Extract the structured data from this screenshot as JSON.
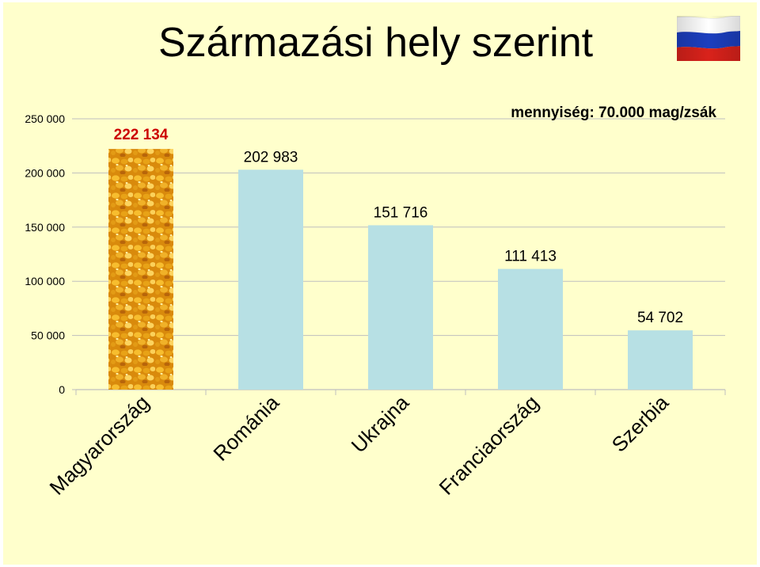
{
  "slide": {
    "title": "Származási hely szerint",
    "flag_icon": "russian-flag-icon"
  },
  "colors": {
    "background": "#ffffcc",
    "bar": "#b7e0e4",
    "highlight_label": "#cc0000",
    "grid": "#bfbfbf",
    "flag_white": "#ffffff",
    "flag_blue": "#1c3fbf",
    "flag_red": "#d9221b"
  },
  "chart_data": {
    "type": "bar",
    "annotation": "mennyiség: 70.000 mag/zsák",
    "categories": [
      "Magyarország",
      "Románia",
      "Ukrajna",
      "Franciaország",
      "Szerbia"
    ],
    "values": [
      222134,
      202983,
      151716,
      111413,
      54702
    ],
    "value_labels": [
      "222 134",
      "202 983",
      "151 716",
      "111 413",
      "54 702"
    ],
    "highlight_index": 0,
    "highlight_fill": "corn kernel photo texture",
    "ylim": [
      0,
      250000
    ],
    "yticks": [
      0,
      50000,
      100000,
      150000,
      200000,
      250000
    ],
    "ytick_labels": [
      "0",
      "50 000",
      "100 000",
      "150 000",
      "200 000",
      "250 000"
    ],
    "grid": true,
    "xlabel": "",
    "ylabel": ""
  }
}
